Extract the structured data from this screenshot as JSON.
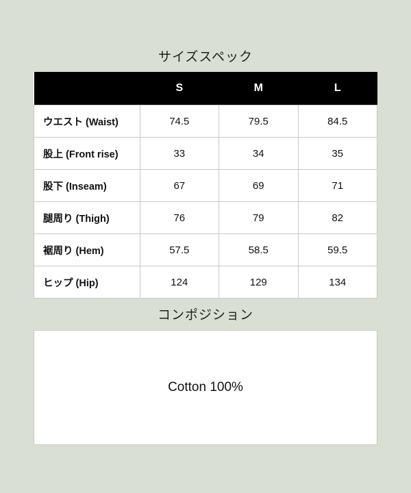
{
  "size_spec": {
    "title": "サイズスペック",
    "headers": [
      "",
      "S",
      "M",
      "L"
    ],
    "rows": [
      {
        "label": "ウエスト (Waist)",
        "values": [
          "74.5",
          "79.5",
          "84.5"
        ]
      },
      {
        "label": "股上 (Front rise)",
        "values": [
          "33",
          "34",
          "35"
        ]
      },
      {
        "label": "股下 (Inseam)",
        "values": [
          "67",
          "69",
          "71"
        ]
      },
      {
        "label": "腿周り (Thigh)",
        "values": [
          "76",
          "79",
          "82"
        ]
      },
      {
        "label": "裾周り (Hem)",
        "values": [
          "57.5",
          "58.5",
          "59.5"
        ]
      },
      {
        "label": "ヒップ (Hip)",
        "values": [
          "124",
          "129",
          "134"
        ]
      }
    ]
  },
  "composition": {
    "title": "コンポジション",
    "text": "Cotton 100%"
  }
}
